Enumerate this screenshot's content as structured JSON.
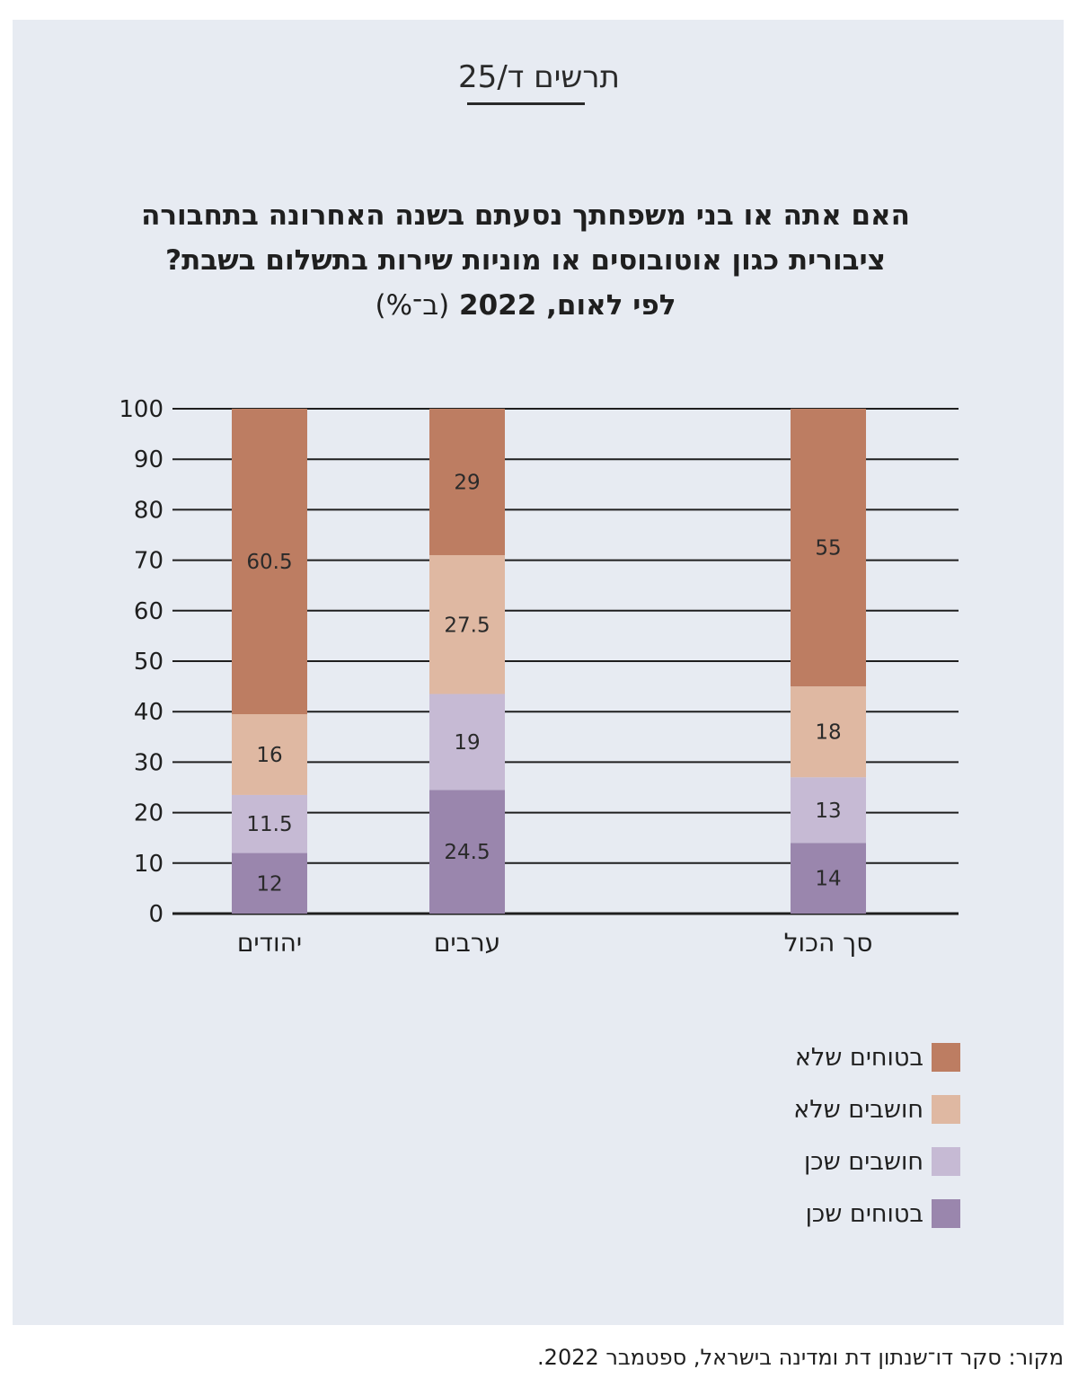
{
  "figure_label": "תרשים ד/25",
  "source": "מקור: סקר דו־שנתון דת ומדינה בישראל, ספטמבר 2022.",
  "chart_data": {
    "type": "bar",
    "stacked": true,
    "title": "האם אתה או בני משפחתך נסעתם בשנה האחרונה בתחבורה ציבורית כגון אוטובוסים או מוניות שירות בתשלום בשבת?",
    "title_lines": [
      "האם אתה או בני משפחתך נסעתם בשנה האחרונה בתחבורה",
      "ציבורית כגון אוטובוסים או מוניות שירות בתשלום בשבת?"
    ],
    "subtitle": "לפי לאום, 2022",
    "unit_label": "(ב־%)",
    "categories": [
      "יהודים",
      "ערבים",
      "סך הכול"
    ],
    "series": [
      {
        "name": "בטוחים שכן",
        "values": [
          12,
          24.5,
          14
        ],
        "color": "#9a86ad"
      },
      {
        "name": "חושבים שכן",
        "values": [
          11.5,
          19,
          13
        ],
        "color": "#c6bad4"
      },
      {
        "name": "חושבים שלא",
        "values": [
          16,
          27.5,
          18
        ],
        "color": "#dfb8a2"
      },
      {
        "name": "בטוחים שלא",
        "values": [
          60.5,
          29,
          55
        ],
        "color": "#bd7d62"
      }
    ],
    "ylim": [
      0,
      100
    ],
    "y_ticks": [
      0,
      10,
      20,
      30,
      40,
      50,
      60,
      70,
      80,
      90,
      100
    ],
    "grid": true,
    "legend_position": "bottom-right"
  }
}
